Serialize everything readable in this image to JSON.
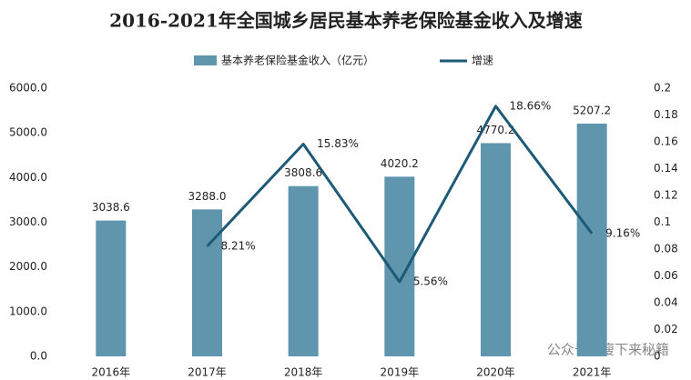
{
  "chart_data": {
    "type": "bar",
    "title": "2016-2021年全国城乡居民基本养老保险基金收入及增速",
    "categories": [
      "2016年",
      "2017年",
      "2018年",
      "2019年",
      "2020年",
      "2021年"
    ],
    "series": [
      {
        "name": "基本养老保险基金收入（亿元）",
        "type": "bar",
        "color": "#6096ad",
        "values": [
          3038.6,
          3288.0,
          3808.6,
          4020.2,
          4770.2,
          5207.2
        ],
        "value_labels": [
          "3038.6",
          "3288.0",
          "3808.6",
          "4020.2",
          "4770.2",
          "5207.2"
        ]
      },
      {
        "name": "增速",
        "type": "line",
        "axis": "y2",
        "color": "#1d5a78",
        "values": [
          null,
          0.0821,
          0.1583,
          0.0556,
          0.1866,
          0.0916
        ],
        "value_labels": [
          null,
          "8.21%",
          "15.83%",
          "5.56%",
          "18.66%",
          "9.16%"
        ]
      }
    ],
    "ylim": [
      0,
      6000
    ],
    "yticks": [
      {
        "value": 0,
        "label": "0.0"
      },
      {
        "value": 1000,
        "label": "1000.0"
      },
      {
        "value": 2000,
        "label": "2000.0"
      },
      {
        "value": 3000,
        "label": "3000.0"
      },
      {
        "value": 4000,
        "label": "4000.0"
      },
      {
        "value": 5000,
        "label": "5000.0"
      },
      {
        "value": 6000,
        "label": "6000.0"
      }
    ],
    "y2lim": [
      0,
      0.2
    ],
    "y2ticks": [
      0,
      0.02,
      0.04,
      0.06,
      0.08,
      0.1,
      0.12,
      0.14,
      0.16,
      0.18,
      0.2
    ],
    "legend": "top",
    "watermark": "公众号 · 瘦下来秘籍"
  }
}
